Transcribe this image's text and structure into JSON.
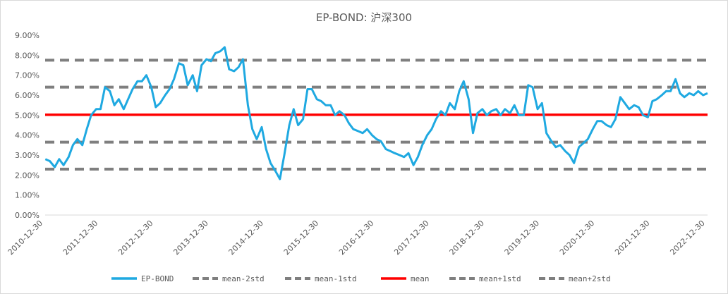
{
  "chart_data": {
    "type": "line",
    "title": "EP-BOND: 沪深300",
    "xlabel": "",
    "ylabel": "",
    "ylim": [
      0,
      9
    ],
    "y_ticks": [
      "0.00%",
      "1.00%",
      "2.00%",
      "3.00%",
      "4.00%",
      "5.00%",
      "6.00%",
      "7.00%",
      "8.00%",
      "9.00%"
    ],
    "x_range": [
      2010.996,
      2023.0
    ],
    "x_ticks": [
      {
        "label": "2010-12-30",
        "x": 2010.996
      },
      {
        "label": "2011-12-30",
        "x": 2011.996
      },
      {
        "label": "2012-12-30",
        "x": 2012.996
      },
      {
        "label": "2013-12-30",
        "x": 2013.996
      },
      {
        "label": "2014-12-30",
        "x": 2014.996
      },
      {
        "label": "2015-12-30",
        "x": 2015.996
      },
      {
        "label": "2016-12-30",
        "x": 2016.996
      },
      {
        "label": "2017-12-30",
        "x": 2017.996
      },
      {
        "label": "2018-12-30",
        "x": 2018.996
      },
      {
        "label": "2019-12-30",
        "x": 2019.996
      },
      {
        "label": "2020-12-30",
        "x": 2020.996
      },
      {
        "label": "2021-12-30",
        "x": 2021.996
      },
      {
        "label": "2022-12-30",
        "x": 2022.996
      }
    ],
    "series": [
      {
        "name": "EP-BOND",
        "color": "#1fa9e1",
        "x": [
          2011.0,
          2011.08,
          2011.17,
          2011.25,
          2011.33,
          2011.42,
          2011.5,
          2011.58,
          2011.67,
          2011.75,
          2011.83,
          2011.92,
          2012.0,
          2012.08,
          2012.17,
          2012.25,
          2012.33,
          2012.42,
          2012.5,
          2012.58,
          2012.67,
          2012.75,
          2012.83,
          2012.92,
          2013.0,
          2013.08,
          2013.17,
          2013.25,
          2013.33,
          2013.42,
          2013.5,
          2013.58,
          2013.67,
          2013.75,
          2013.83,
          2013.92,
          2014.0,
          2014.08,
          2014.17,
          2014.25,
          2014.33,
          2014.42,
          2014.5,
          2014.58,
          2014.67,
          2014.75,
          2014.83,
          2014.92,
          2015.0,
          2015.08,
          2015.17,
          2015.25,
          2015.33,
          2015.42,
          2015.5,
          2015.58,
          2015.67,
          2015.75,
          2015.83,
          2015.92,
          2016.0,
          2016.08,
          2016.17,
          2016.25,
          2016.33,
          2016.42,
          2016.5,
          2016.58,
          2016.67,
          2016.75,
          2016.83,
          2016.92,
          2017.0,
          2017.08,
          2017.17,
          2017.25,
          2017.33,
          2017.42,
          2017.5,
          2017.58,
          2017.67,
          2017.75,
          2017.83,
          2017.92,
          2018.0,
          2018.08,
          2018.17,
          2018.25,
          2018.33,
          2018.42,
          2018.5,
          2018.58,
          2018.67,
          2018.75,
          2018.83,
          2018.92,
          2019.0,
          2019.08,
          2019.17,
          2019.25,
          2019.33,
          2019.42,
          2019.5,
          2019.58,
          2019.67,
          2019.75,
          2019.83,
          2019.92,
          2020.0,
          2020.08,
          2020.17,
          2020.25,
          2020.33,
          2020.42,
          2020.5,
          2020.58,
          2020.67,
          2020.75,
          2020.83,
          2020.92,
          2021.0,
          2021.08,
          2021.17,
          2021.25,
          2021.33,
          2021.42,
          2021.5,
          2021.58,
          2021.67,
          2021.75,
          2021.83,
          2021.92,
          2022.0,
          2022.08,
          2022.17,
          2022.25,
          2022.33,
          2022.42,
          2022.5,
          2022.58,
          2022.67,
          2022.75,
          2022.83,
          2022.92,
          2023.0
        ],
        "values": [
          2.8,
          2.7,
          2.4,
          2.8,
          2.5,
          2.9,
          3.5,
          3.8,
          3.5,
          4.3,
          5.0,
          5.3,
          5.3,
          6.4,
          6.2,
          5.5,
          5.8,
          5.3,
          5.8,
          6.3,
          6.7,
          6.7,
          7.0,
          6.4,
          5.4,
          5.6,
          6.0,
          6.3,
          6.8,
          7.6,
          7.5,
          6.5,
          7.0,
          6.2,
          7.5,
          7.8,
          7.7,
          8.1,
          8.2,
          8.4,
          7.3,
          7.2,
          7.4,
          7.8,
          5.5,
          4.3,
          3.8,
          4.4,
          3.3,
          2.6,
          2.2,
          1.8,
          3.0,
          4.5,
          5.3,
          4.5,
          4.8,
          6.3,
          6.3,
          5.8,
          5.7,
          5.5,
          5.5,
          5.0,
          5.2,
          5.0,
          4.6,
          4.3,
          4.2,
          4.1,
          4.3,
          4.0,
          3.8,
          3.7,
          3.3,
          3.2,
          3.1,
          3.0,
          2.9,
          3.1,
          2.5,
          2.9,
          3.5,
          4.0,
          4.3,
          4.8,
          5.2,
          5.0,
          5.6,
          5.3,
          6.2,
          6.7,
          5.8,
          4.1,
          5.1,
          5.3,
          5.0,
          5.2,
          5.3,
          5.0,
          5.3,
          5.1,
          5.5,
          5.0,
          5.0,
          6.5,
          6.4,
          5.3,
          5.6,
          4.1,
          3.7,
          3.4,
          3.5,
          3.2,
          3.0,
          2.6,
          3.4,
          3.6,
          3.8,
          4.3,
          4.7,
          4.7,
          4.5,
          4.4,
          4.8,
          5.9,
          5.6,
          5.3,
          5.5,
          5.4,
          5.0,
          4.9,
          5.7,
          5.8,
          6.0,
          6.2,
          6.2,
          6.8,
          6.1,
          5.9,
          6.1,
          6.0,
          6.2,
          6.0,
          6.1
        ]
      },
      {
        "name": "mean-2std",
        "color": "#7f7f7f",
        "dashed": true,
        "value": 2.3
      },
      {
        "name": "mean-1std",
        "color": "#7f7f7f",
        "dashed": true,
        "value": 3.65
      },
      {
        "name": "mean",
        "color": "#ff0000",
        "dashed": false,
        "value": 5.02
      },
      {
        "name": "mean+1std",
        "color": "#7f7f7f",
        "dashed": true,
        "value": 6.4
      },
      {
        "name": "mean+2std",
        "color": "#7f7f7f",
        "dashed": true,
        "value": 7.75
      }
    ],
    "legend_position": "bottom",
    "grid": false
  }
}
